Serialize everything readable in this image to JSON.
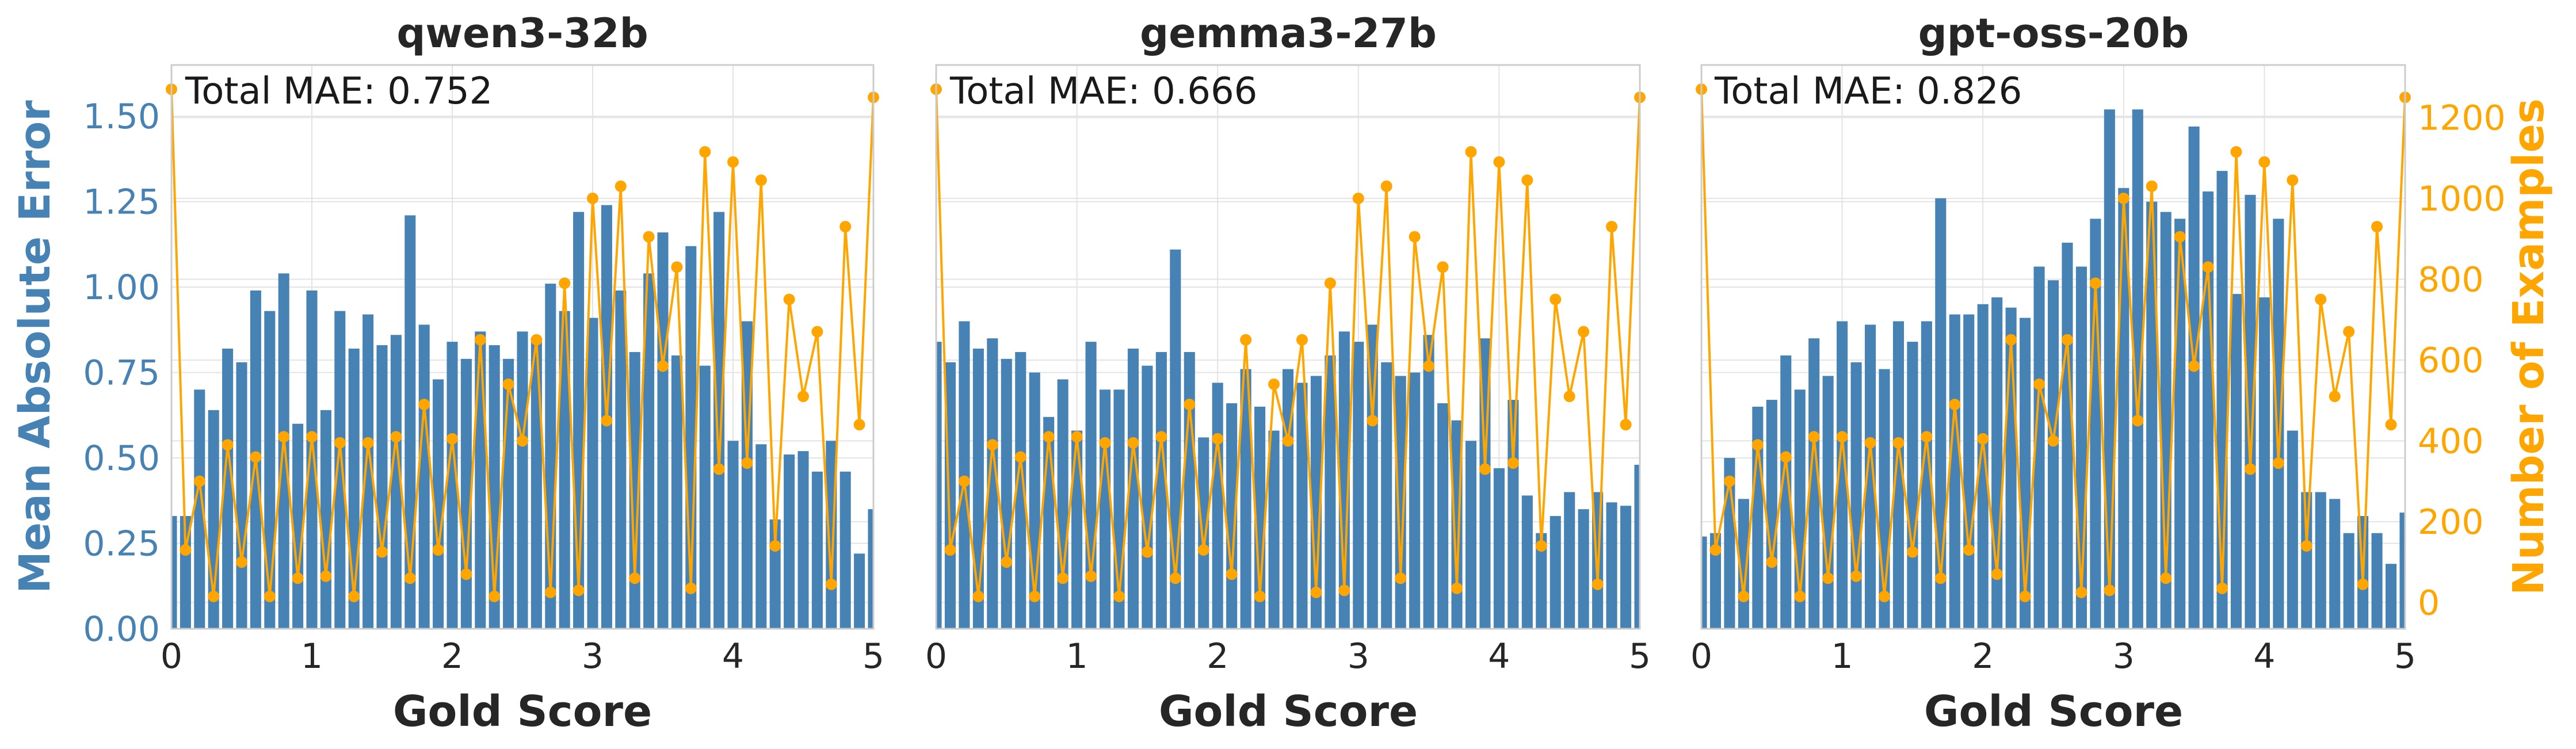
{
  "colors": {
    "bar": "#4682b4",
    "line": "#ffa500",
    "grid": "#e3e3e3",
    "spine": "#cccccc",
    "left_axis": "#4682b4",
    "right_axis": "#ffa500"
  },
  "axes": {
    "xlabel": "Gold Score",
    "ylabel_left": "Mean Absolute Error",
    "ylabel_right": "Number of Examples",
    "xlim": [
      0,
      5
    ],
    "x_ticks": [
      "0",
      "1",
      "2",
      "3",
      "4",
      "5"
    ],
    "ylim_left": [
      0,
      1.65
    ],
    "y_ticks_left": [
      "0.00",
      "0.25",
      "0.50",
      "0.75",
      "1.00",
      "1.25",
      "1.50"
    ],
    "ylim_right": [
      -65,
      1330
    ],
    "y_ticks_right": [
      "0",
      "200",
      "400",
      "600",
      "800",
      "1000",
      "1200"
    ]
  },
  "chart_data": [
    {
      "type": "bar",
      "title": "qwen3-32b",
      "annotation": "Total MAE: 0.752",
      "x": [
        0,
        0.1,
        0.2,
        0.3,
        0.4,
        0.5,
        0.6,
        0.7,
        0.8,
        0.9,
        1.0,
        1.1,
        1.2,
        1.3,
        1.4,
        1.5,
        1.6,
        1.7,
        1.8,
        1.9,
        2.0,
        2.1,
        2.2,
        2.3,
        2.4,
        2.5,
        2.6,
        2.7,
        2.8,
        2.9,
        3.0,
        3.1,
        3.2,
        3.3,
        3.4,
        3.5,
        3.6,
        3.7,
        3.8,
        3.9,
        4.0,
        4.1,
        4.2,
        4.3,
        4.4,
        4.5,
        4.6,
        4.7,
        4.8,
        4.9,
        5.0
      ],
      "series": [
        {
          "name": "Mean Absolute Error",
          "axis": "left",
          "values": [
            0.33,
            0.33,
            0.7,
            0.64,
            0.82,
            0.78,
            0.99,
            0.93,
            1.04,
            0.6,
            0.99,
            0.64,
            0.93,
            0.82,
            0.92,
            0.83,
            0.86,
            1.21,
            0.89,
            0.73,
            0.84,
            0.79,
            0.87,
            0.83,
            0.79,
            0.87,
            0.84,
            1.01,
            0.93,
            1.22,
            0.91,
            1.24,
            0.99,
            0.81,
            1.04,
            1.16,
            0.8,
            1.12,
            0.77,
            1.22,
            0.55,
            0.9,
            0.54,
            0.32,
            0.51,
            0.52,
            0.46,
            0.55,
            0.46,
            0.22,
            0.35
          ]
        },
        {
          "name": "Number of Examples",
          "axis": "right",
          "values": [
            1270,
            130,
            300,
            15,
            390,
            100,
            360,
            15,
            410,
            60,
            410,
            65,
            395,
            15,
            395,
            125,
            410,
            60,
            490,
            130,
            405,
            70,
            650,
            15,
            540,
            400,
            650,
            25,
            790,
            30,
            1000,
            450,
            1030,
            60,
            905,
            585,
            830,
            35,
            1115,
            330,
            1090,
            345,
            1045,
            140,
            750,
            510,
            670,
            45,
            930,
            440,
            1250
          ]
        }
      ]
    },
    {
      "type": "bar",
      "title": "gemma3-27b",
      "annotation": "Total MAE: 0.666",
      "x": [
        0,
        0.1,
        0.2,
        0.3,
        0.4,
        0.5,
        0.6,
        0.7,
        0.8,
        0.9,
        1.0,
        1.1,
        1.2,
        1.3,
        1.4,
        1.5,
        1.6,
        1.7,
        1.8,
        1.9,
        2.0,
        2.1,
        2.2,
        2.3,
        2.4,
        2.5,
        2.6,
        2.7,
        2.8,
        2.9,
        3.0,
        3.1,
        3.2,
        3.3,
        3.4,
        3.5,
        3.6,
        3.7,
        3.8,
        3.9,
        4.0,
        4.1,
        4.2,
        4.3,
        4.4,
        4.5,
        4.6,
        4.7,
        4.8,
        4.9,
        5.0
      ],
      "series": [
        {
          "name": "Mean Absolute Error",
          "axis": "left",
          "values": [
            0.84,
            0.78,
            0.9,
            0.82,
            0.85,
            0.79,
            0.81,
            0.75,
            0.62,
            0.73,
            0.58,
            0.84,
            0.7,
            0.7,
            0.82,
            0.77,
            0.81,
            1.11,
            0.81,
            0.56,
            0.72,
            0.66,
            0.76,
            0.65,
            0.58,
            0.76,
            0.72,
            0.74,
            0.8,
            0.87,
            0.84,
            0.89,
            0.78,
            0.74,
            0.75,
            0.86,
            0.66,
            0.61,
            0.55,
            0.85,
            0.47,
            0.67,
            0.39,
            0.28,
            0.33,
            0.4,
            0.35,
            0.4,
            0.37,
            0.36,
            0.48
          ]
        },
        {
          "name": "Number of Examples",
          "axis": "right",
          "values": [
            1270,
            130,
            300,
            15,
            390,
            100,
            360,
            15,
            410,
            60,
            410,
            65,
            395,
            15,
            395,
            125,
            410,
            60,
            490,
            130,
            405,
            70,
            650,
            15,
            540,
            400,
            650,
            25,
            790,
            30,
            1000,
            450,
            1030,
            60,
            905,
            585,
            830,
            35,
            1115,
            330,
            1090,
            345,
            1045,
            140,
            750,
            510,
            670,
            45,
            930,
            440,
            1250
          ]
        }
      ]
    },
    {
      "type": "bar",
      "title": "gpt-oss-20b",
      "annotation": "Total MAE: 0.826",
      "x": [
        0,
        0.1,
        0.2,
        0.3,
        0.4,
        0.5,
        0.6,
        0.7,
        0.8,
        0.9,
        1.0,
        1.1,
        1.2,
        1.3,
        1.4,
        1.5,
        1.6,
        1.7,
        1.8,
        1.9,
        2.0,
        2.1,
        2.2,
        2.3,
        2.4,
        2.5,
        2.6,
        2.7,
        2.8,
        2.9,
        3.0,
        3.1,
        3.2,
        3.3,
        3.4,
        3.5,
        3.6,
        3.7,
        3.8,
        3.9,
        4.0,
        4.1,
        4.2,
        4.3,
        4.4,
        4.5,
        4.6,
        4.7,
        4.8,
        4.9,
        5.0
      ],
      "series": [
        {
          "name": "Mean Absolute Error",
          "axis": "left",
          "values": [
            0.27,
            0.28,
            0.5,
            0.38,
            0.65,
            0.67,
            0.8,
            0.7,
            0.85,
            0.74,
            0.9,
            0.78,
            0.89,
            0.76,
            0.9,
            0.84,
            0.9,
            1.26,
            0.92,
            0.92,
            0.95,
            0.97,
            0.94,
            0.91,
            1.06,
            1.02,
            1.13,
            1.06,
            1.2,
            1.52,
            1.29,
            1.52,
            1.25,
            1.22,
            1.2,
            1.47,
            1.28,
            1.34,
            0.98,
            1.27,
            0.97,
            1.2,
            0.58,
            0.4,
            0.4,
            0.38,
            0.28,
            0.33,
            0.28,
            0.19,
            0.34
          ]
        },
        {
          "name": "Number of Examples",
          "axis": "right",
          "values": [
            1270,
            130,
            300,
            15,
            390,
            100,
            360,
            15,
            410,
            60,
            410,
            65,
            395,
            15,
            395,
            125,
            410,
            60,
            490,
            130,
            405,
            70,
            650,
            15,
            540,
            400,
            650,
            25,
            790,
            30,
            1000,
            450,
            1030,
            60,
            905,
            585,
            830,
            35,
            1115,
            330,
            1090,
            345,
            1045,
            140,
            750,
            510,
            670,
            45,
            930,
            440,
            1250
          ]
        }
      ]
    }
  ]
}
